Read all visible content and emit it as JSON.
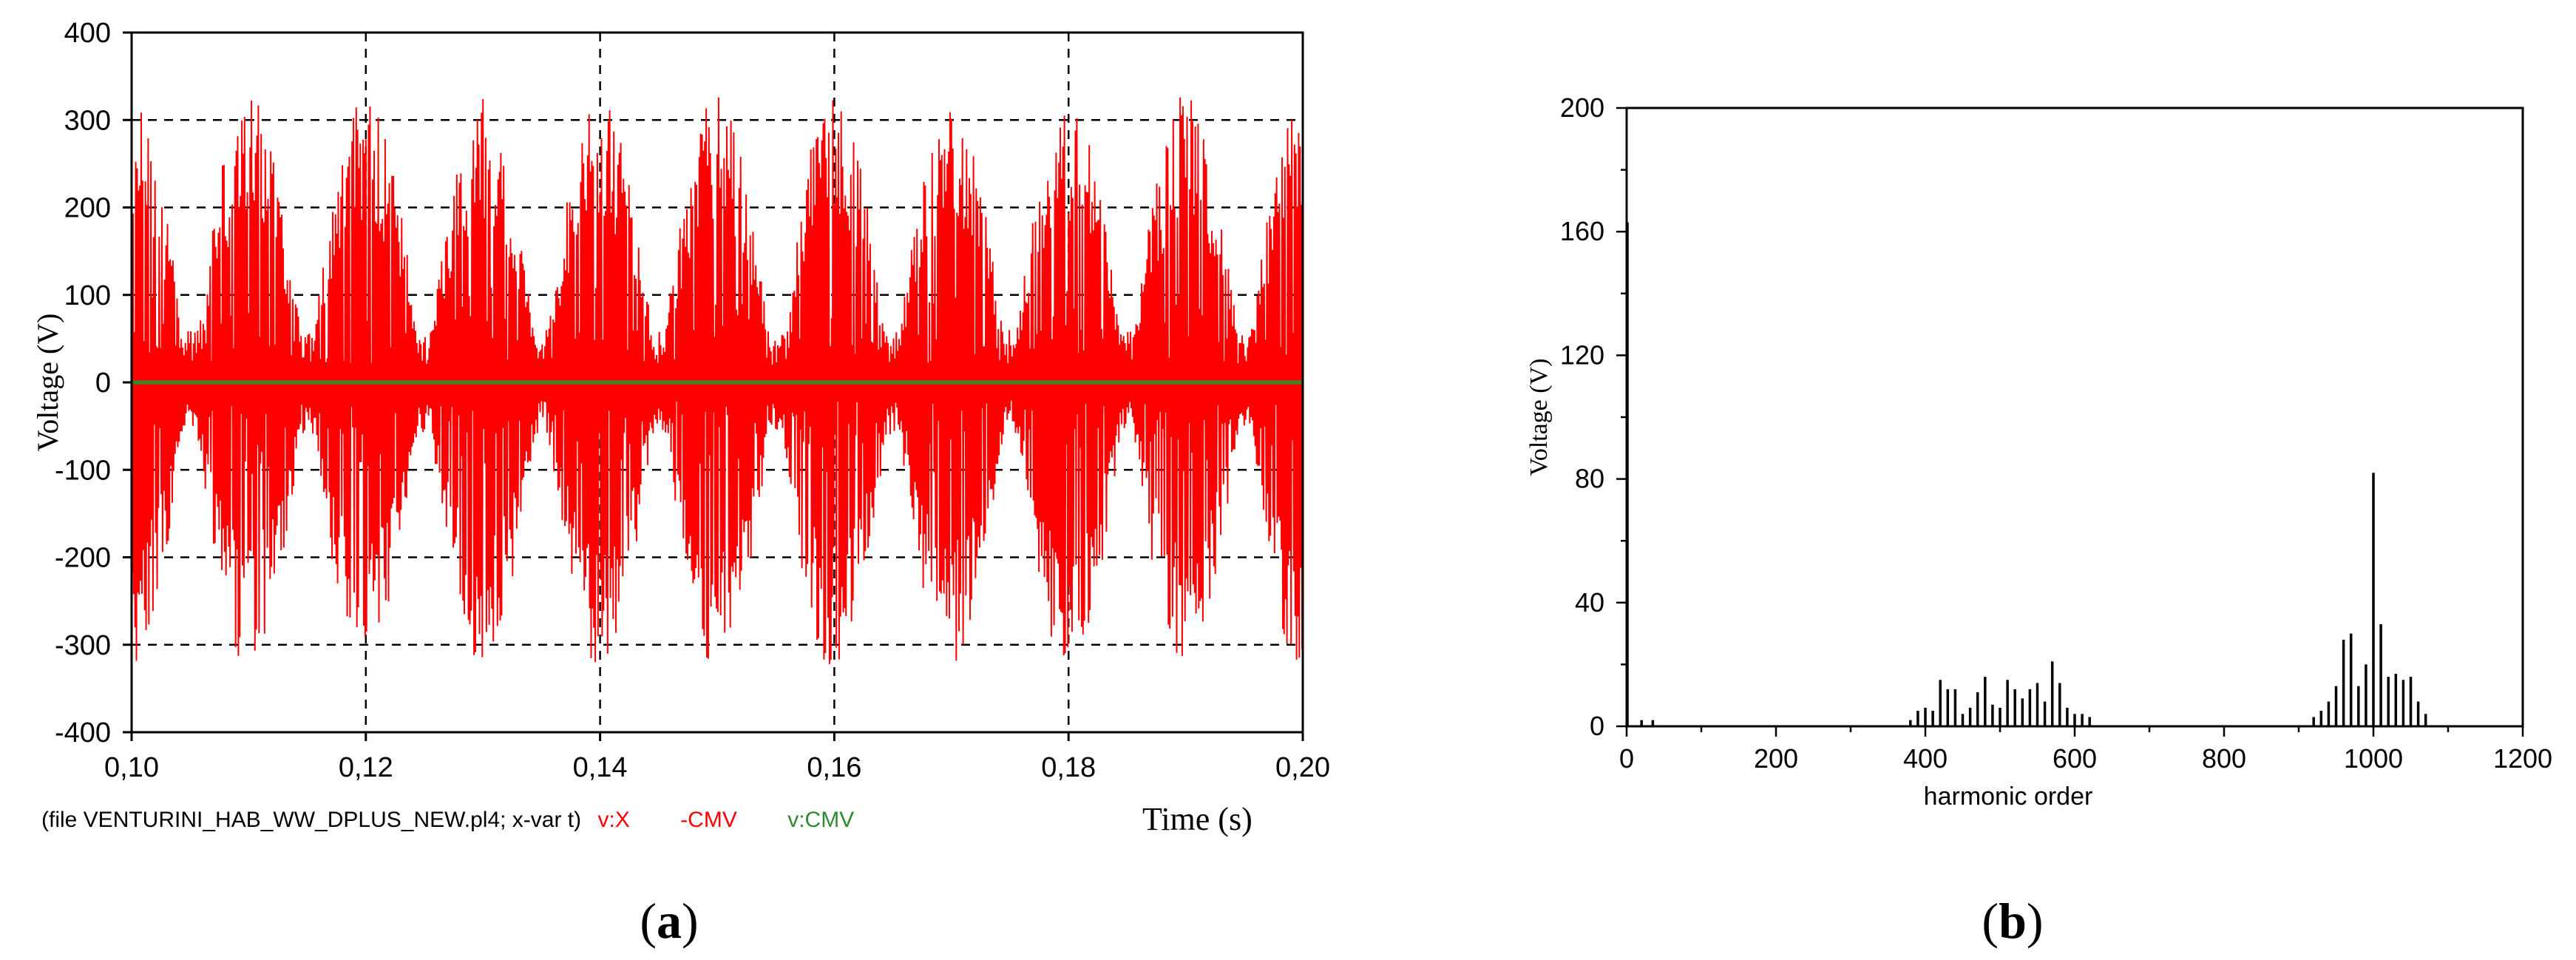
{
  "panel_labels": {
    "a": {
      "open": "(",
      "letter": "a",
      "close": ")"
    },
    "b": {
      "open": "(",
      "letter": "b",
      "close": ")"
    }
  },
  "chart_data": [
    {
      "id": "a",
      "type": "line",
      "title": "",
      "xlabel": "Time (s)",
      "ylabel": "Voltage (V)",
      "xlim": [
        0.1,
        0.2
      ],
      "ylim": [
        -400,
        400
      ],
      "x_ticks": [
        "0,10",
        "0,12",
        "0,14",
        "0,16",
        "0,18",
        "0,20"
      ],
      "y_ticks": [
        "400",
        "300",
        "200",
        "100",
        "0",
        "-100",
        "-200",
        "-300",
        "-400"
      ],
      "x_tick_values": [
        0.1,
        0.12,
        0.14,
        0.16,
        0.18,
        0.2
      ],
      "y_tick_values": [
        400,
        300,
        200,
        100,
        0,
        -100,
        -200,
        -300,
        -400
      ],
      "grid": true,
      "grid_style": "dashed",
      "fundamental_frequency_hz": 50,
      "peak_voltage": 330,
      "legend": {
        "prefix": "(file VENTURINI_HAB_WW_DPLUS_NEW.pl4; x-var t)",
        "entries": [
          {
            "label": "v:X",
            "color": "#ff0000"
          },
          {
            "label": "-CMV",
            "color": "#ff0000"
          },
          {
            "label": "v:CMV",
            "color": "#2e8b2e"
          }
        ]
      },
      "series": [
        {
          "name": "v:X -CMV",
          "color": "#ff0000",
          "kind": "pwm-waveform"
        },
        {
          "name": "v:CMV",
          "color": "#2e8b2e",
          "values_constant": 0
        }
      ]
    },
    {
      "id": "b",
      "type": "bar",
      "title": "",
      "xlabel": "harmonic order",
      "ylabel": "Voltage (V)",
      "xlim": [
        0,
        1200
      ],
      "ylim": [
        0,
        200
      ],
      "x_ticks": [
        "0",
        "200",
        "400",
        "600",
        "800",
        "1000",
        "1200"
      ],
      "y_ticks": [
        "200",
        "160",
        "120",
        "80",
        "40",
        "0"
      ],
      "x_tick_values": [
        0,
        200,
        400,
        600,
        800,
        1000,
        1200
      ],
      "y_tick_values": [
        200,
        160,
        120,
        80,
        40,
        0
      ],
      "grid": false,
      "color": "#000000",
      "x": [
        1,
        20,
        35,
        380,
        390,
        400,
        410,
        420,
        430,
        440,
        450,
        460,
        470,
        480,
        490,
        500,
        510,
        520,
        530,
        540,
        550,
        560,
        570,
        580,
        590,
        600,
        610,
        620,
        920,
        930,
        940,
        950,
        960,
        970,
        980,
        990,
        1000,
        1010,
        1020,
        1030,
        1040,
        1050,
        1060,
        1070
      ],
      "values": [
        163,
        2,
        2,
        2,
        5,
        6,
        5,
        15,
        12,
        12,
        4,
        6,
        11,
        16,
        7,
        6,
        15,
        12,
        9,
        12,
        14,
        8,
        21,
        14,
        6,
        4,
        4,
        3,
        3,
        5,
        8,
        13,
        28,
        30,
        13,
        20,
        82,
        33,
        16,
        17,
        15,
        16,
        8,
        4
      ]
    }
  ]
}
